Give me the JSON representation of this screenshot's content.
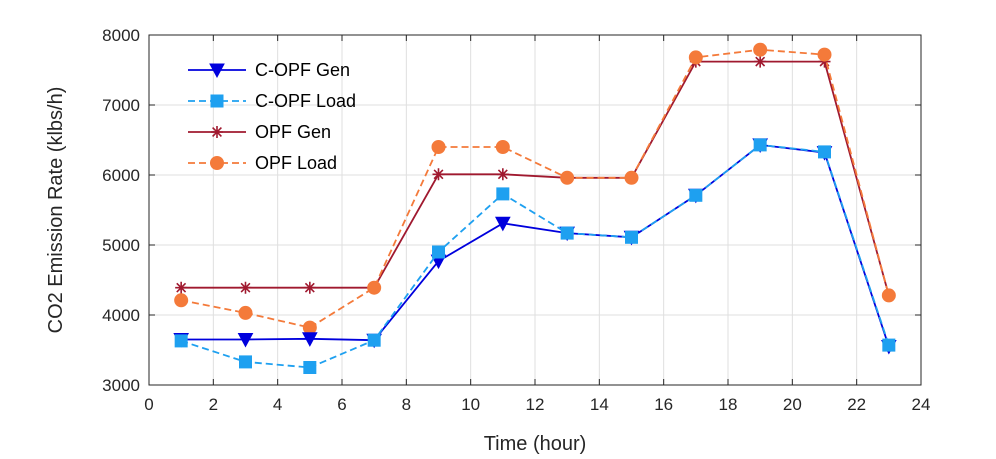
{
  "chart_data": {
    "type": "line",
    "title": "",
    "xlabel": "Time (hour)",
    "ylabel": "CO2 Emission Rate (klbs/h)",
    "xlim": [
      0,
      24
    ],
    "ylim": [
      3000,
      8000
    ],
    "xticks": [
      "0",
      "2",
      "4",
      "6",
      "8",
      "10",
      "12",
      "14",
      "16",
      "18",
      "20",
      "22",
      "24"
    ],
    "yticks": [
      "3000",
      "4000",
      "5000",
      "6000",
      "7000",
      "8000"
    ],
    "grid": true,
    "legend_position": "top-left",
    "x": [
      1,
      3,
      5,
      7,
      9,
      11,
      13,
      15,
      17,
      19,
      21,
      23
    ],
    "series": [
      {
        "name": "C-OPF Gen",
        "color": "#0000dd",
        "dash": "solid",
        "marker": "triangle-down",
        "values": [
          3650,
          3650,
          3660,
          3640,
          4770,
          5310,
          5170,
          5110,
          5710,
          6430,
          6320,
          3550
        ]
      },
      {
        "name": "C-OPF Load",
        "color": "#1ea0f0",
        "dash": "dashed",
        "marker": "square",
        "values": [
          3630,
          3330,
          3250,
          3640,
          4900,
          5730,
          5170,
          5110,
          5710,
          6430,
          6330,
          3570
        ]
      },
      {
        "name": "OPF Gen",
        "color": "#a0192f",
        "dash": "solid",
        "marker": "asterisk",
        "values": [
          4390,
          4390,
          4390,
          4390,
          6010,
          6010,
          5960,
          5960,
          7620,
          7620,
          7620,
          4280
        ]
      },
      {
        "name": "OPF Load",
        "color": "#f47a3a",
        "dash": "dashed",
        "marker": "circle",
        "values": [
          4210,
          4030,
          3820,
          4390,
          6400,
          6400,
          5960,
          5960,
          7680,
          7790,
          7720,
          4280
        ]
      }
    ]
  }
}
